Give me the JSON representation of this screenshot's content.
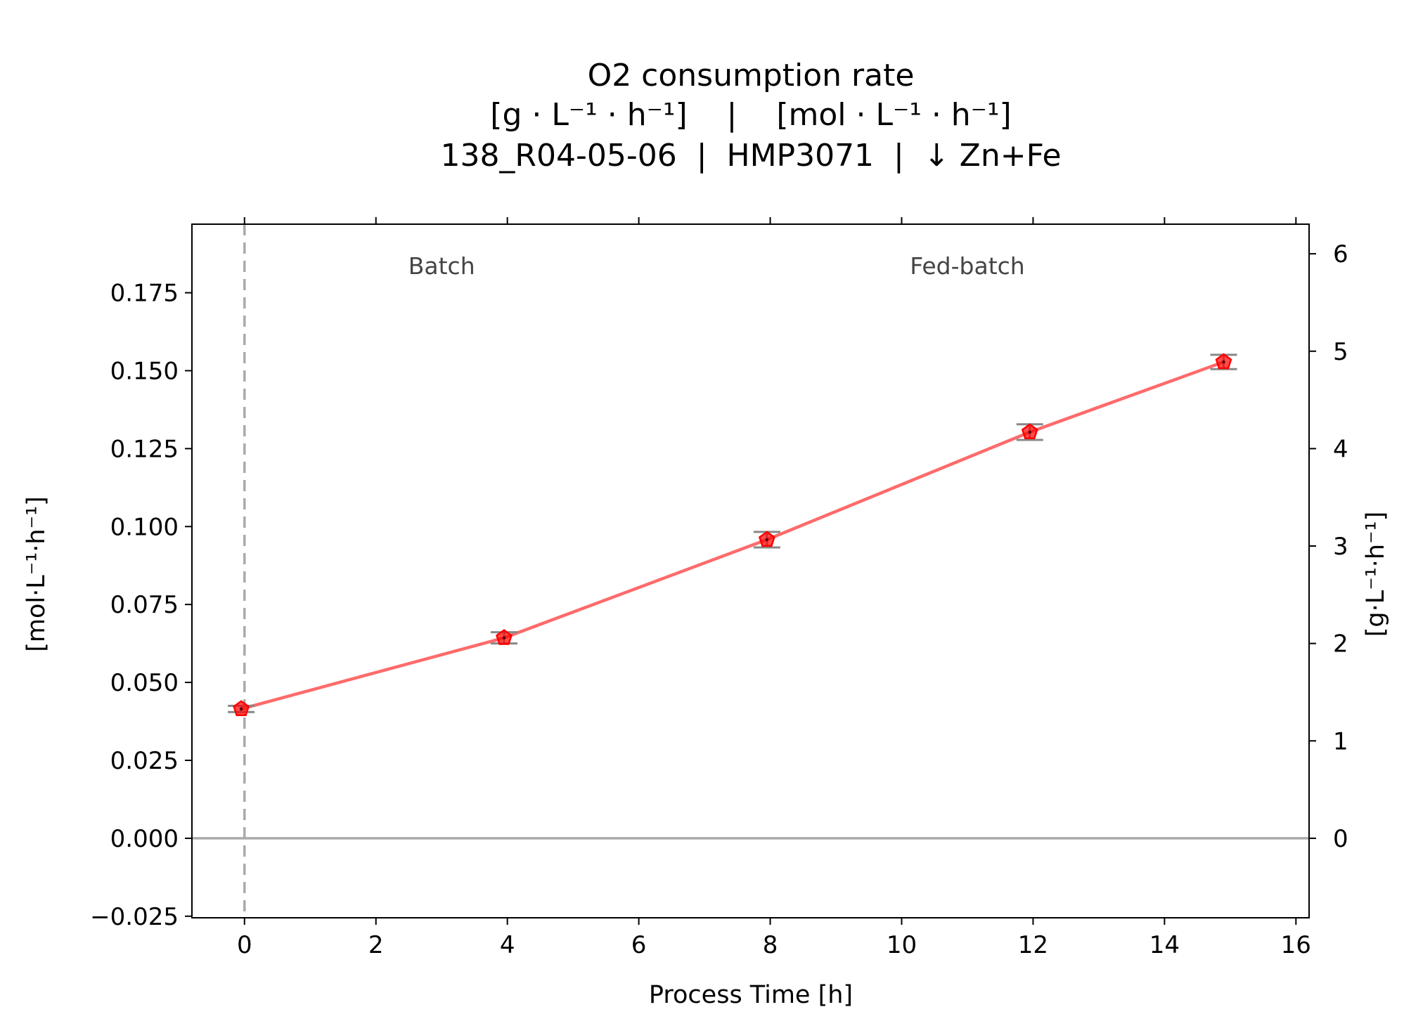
{
  "chart_data": {
    "type": "line",
    "title_lines": [
      "O2 consumption rate",
      "[g · L⁻¹ · h⁻¹]    |    [mol · L⁻¹ · h⁻¹]",
      "138_R04-05-06  |  HMP3071  |  ↓ Zn+Fe"
    ],
    "xlabel": "Process Time [h]",
    "ylabel_left": "[mol·L⁻¹·h⁻¹]",
    "ylabel_right": "[g·L⁻¹·h⁻¹]",
    "xlim": [
      -0.8,
      16.2
    ],
    "ylim_left": [
      -0.0255,
      0.197
    ],
    "ylim_right": [
      -0.816,
      6.304
    ],
    "x_ticks": [
      0,
      2,
      4,
      6,
      8,
      10,
      12,
      14,
      16
    ],
    "y_ticks_left": [
      -0.025,
      0.0,
      0.025,
      0.05,
      0.075,
      0.1,
      0.125,
      0.15,
      0.175
    ],
    "y_tick_labels_left": [
      "−0.025",
      "0.000",
      "0.025",
      "0.050",
      "0.075",
      "0.100",
      "0.125",
      "0.150",
      "0.175"
    ],
    "y_ticks_right": [
      0,
      1,
      2,
      3,
      4,
      5,
      6
    ],
    "phase_annotations": [
      {
        "label": "Batch",
        "x": 3.0,
        "y": 0.181
      },
      {
        "label": "Fed-batch",
        "x": 11.0,
        "y": 0.181
      }
    ],
    "vertical_reference_x": 0,
    "horizontal_reference_y": 0,
    "series": [
      {
        "x": [
          -0.05,
          3.95,
          7.95,
          11.95,
          14.9
        ],
        "y": [
          0.0415,
          0.0643,
          0.0958,
          0.1303,
          0.1528
        ],
        "error": [
          0.001,
          0.0018,
          0.0025,
          0.0025,
          0.0023
        ],
        "color": "#ff0000",
        "line_color": "#ff6b6b",
        "marker": "pentagon"
      }
    ],
    "reference_line_color": "#aaaaaa",
    "errorbar_color": "#888888"
  }
}
